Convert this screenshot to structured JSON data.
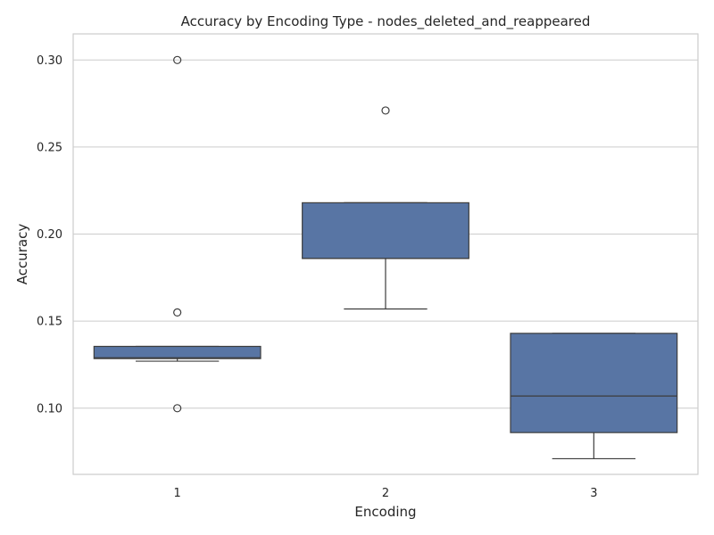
{
  "chart_data": {
    "type": "box",
    "title": "Accuracy by Encoding Type - nodes_deleted_and_reappeared",
    "xlabel": "Encoding",
    "ylabel": "Accuracy",
    "categories": [
      "1",
      "2",
      "3"
    ],
    "ylim": [
      0.062,
      0.315
    ],
    "yticks": [
      0.1,
      0.15,
      0.2,
      0.25,
      0.3
    ],
    "ytick_labels": [
      "0.10",
      "0.15",
      "0.20",
      "0.25",
      "0.30"
    ],
    "grid": "horizontal",
    "box_color": "#5875a4",
    "boxes": [
      {
        "category": "1",
        "whisker_low": 0.127,
        "q1": 0.1285,
        "median": 0.129,
        "q3": 0.1355,
        "whisker_high": 0.1355,
        "outliers": [
          0.3,
          0.155,
          0.1
        ]
      },
      {
        "category": "2",
        "whisker_low": 0.157,
        "q1": 0.186,
        "median": 0.186,
        "q3": 0.218,
        "whisker_high": 0.218,
        "outliers": [
          0.271
        ]
      },
      {
        "category": "3",
        "whisker_low": 0.071,
        "q1": 0.086,
        "median": 0.107,
        "q3": 0.143,
        "whisker_high": 0.143,
        "outliers": []
      }
    ]
  }
}
